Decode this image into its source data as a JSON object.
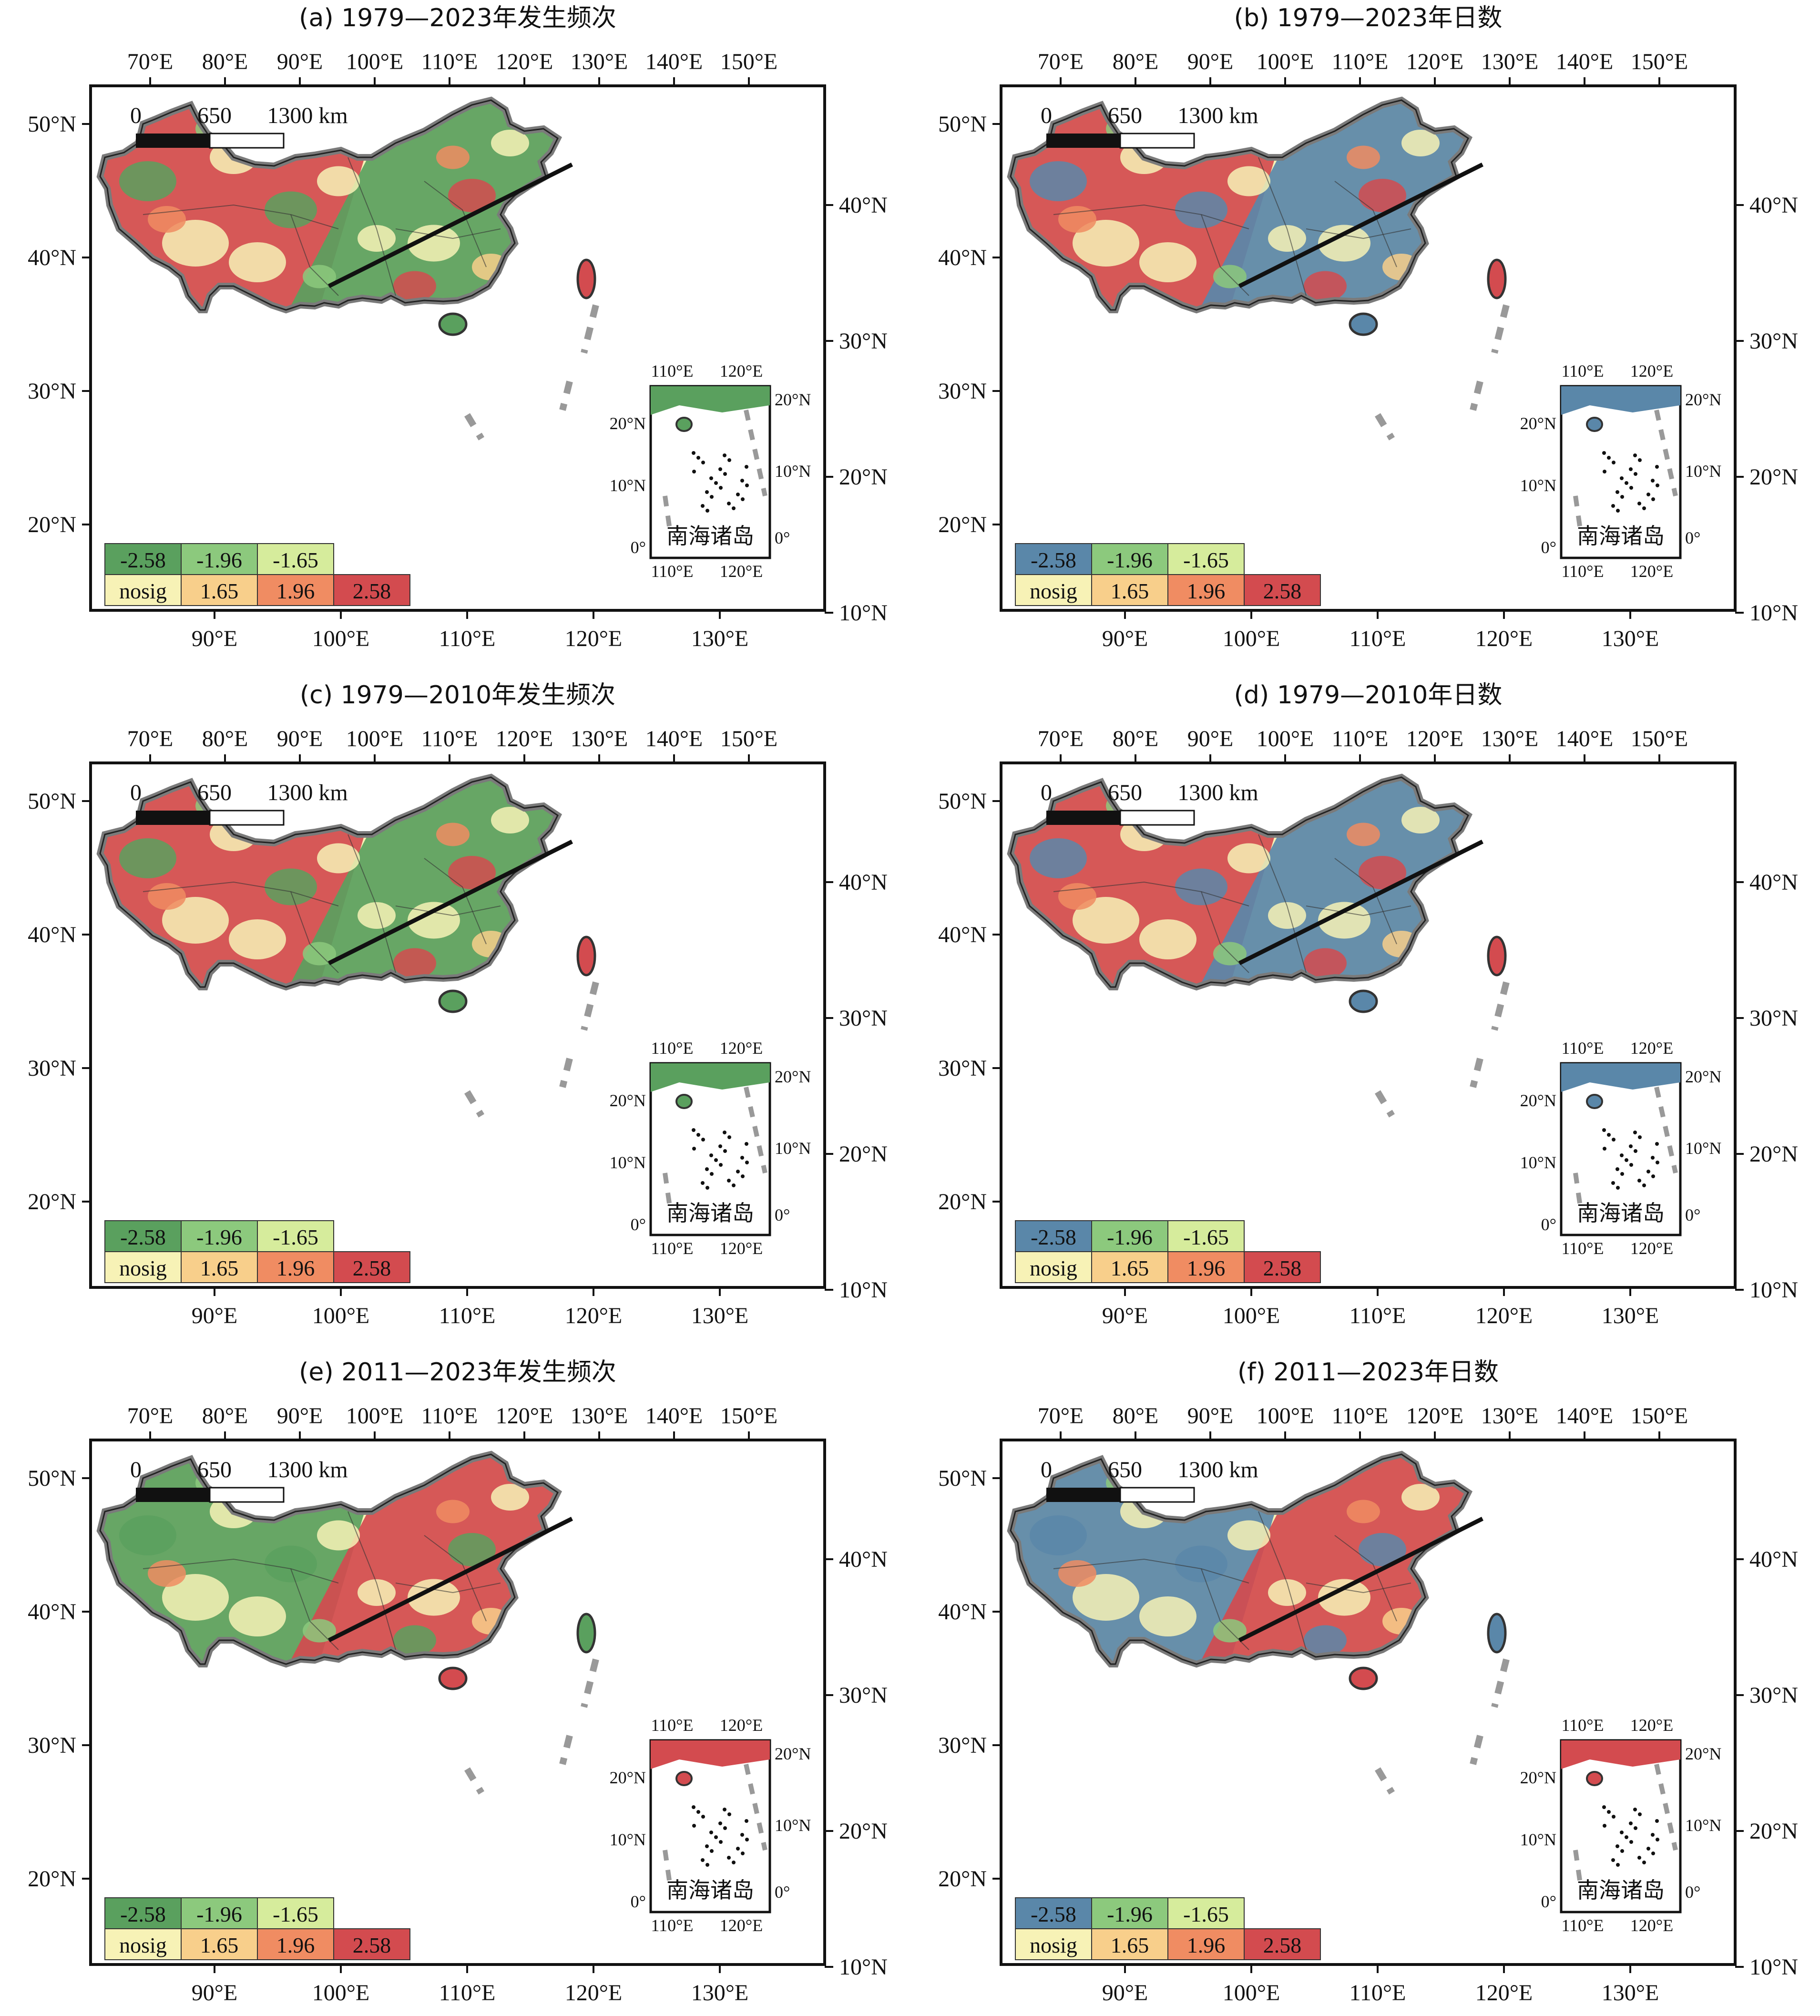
{
  "colors": {
    "neg_258_freq": "#5aa05e",
    "neg_196": "#8cc97d",
    "neg_165": "#d6ec9c",
    "nosig": "#f7f2b6",
    "pos_165": "#f8cf8b",
    "pos_196": "#f08c62",
    "pos_258": "#d34b4f",
    "neg_258_days": "#5a87a9",
    "border": "#7a7a7a",
    "frame": "#111111"
  },
  "top_lon_ticks": [
    "70°E",
    "80°E",
    "90°E",
    "100°E",
    "110°E",
    "120°E",
    "130°E",
    "140°E",
    "150°E"
  ],
  "bottom_lon_ticks": [
    "90°E",
    "100°E",
    "110°E",
    "120°E",
    "130°E"
  ],
  "left_lat_ticks": [
    "50°N",
    "40°N",
    "30°N",
    "20°N"
  ],
  "right_lat_ticks": [
    "40°N",
    "30°N",
    "20°N",
    "10°N"
  ],
  "scale_bar": {
    "labels": [
      "0",
      "650",
      "1300 km"
    ]
  },
  "inset": {
    "title": "南海诸岛",
    "top_ticks": [
      "110°E",
      "120°E"
    ],
    "bottom_ticks": [
      "110°E",
      "120°E"
    ],
    "left_ticks": [
      "20°N",
      "10°N",
      "0°"
    ],
    "right_ticks": [
      "20°N",
      "10°N",
      "0°"
    ]
  },
  "legend": {
    "row1": [
      "-2.58",
      "-1.96",
      "-1.65"
    ],
    "row2": [
      "nosig",
      "1.65",
      "1.96",
      "2.58"
    ]
  },
  "panels": [
    {
      "title": "(a) 1979—2023年发生频次",
      "variable": "frequency",
      "period": "1979—2023",
      "dominant_west": "pos_258",
      "dominant_east": "neg_258"
    },
    {
      "title": "(b) 1979—2023年日数",
      "variable": "days",
      "period": "1979—2023",
      "dominant_west": "pos_258",
      "dominant_east": "neg_258"
    },
    {
      "title": "(c) 1979—2010年发生频次",
      "variable": "frequency",
      "period": "1979—2010",
      "dominant_west": "pos_258",
      "dominant_east": "neg_258"
    },
    {
      "title": "(d) 1979—2010年日数",
      "variable": "days",
      "period": "1979—2010",
      "dominant_west": "pos_258",
      "dominant_east": "neg_258"
    },
    {
      "title": "(e) 2011—2023年发生频次",
      "variable": "frequency",
      "period": "2011—2023",
      "dominant_west": "neg_258",
      "dominant_east": "pos_258"
    },
    {
      "title": "(f) 2011—2023年日数",
      "variable": "days",
      "period": "2011—2023",
      "dominant_west": "neg_258",
      "dominant_east": "pos_258"
    }
  ]
}
